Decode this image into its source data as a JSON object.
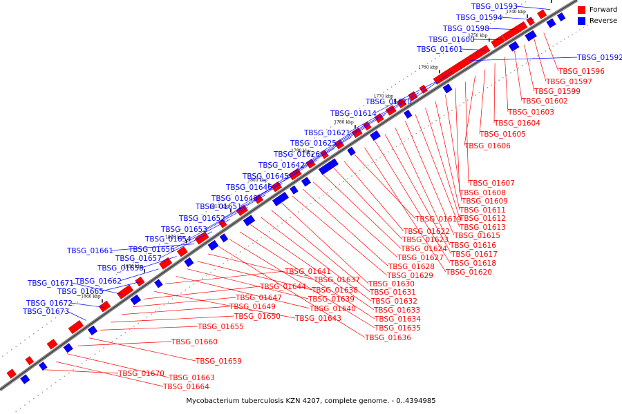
{
  "legend": {
    "forward_label": "Forward",
    "forward_color": "#ff0000",
    "reverse_label": "Reverse",
    "reverse_color": "#0000ff"
  },
  "caption": "Mycobacterium tuberculosis KZN 4207, complete genome. - 0..4394985",
  "axis_ticks": [
    "1730 kbp",
    "1740 kbp",
    "1750 kbp",
    "1760 kbp",
    "1770 kbp",
    "1780 kbp",
    "1790 kbp",
    "1800 kbp",
    "1810 kbp",
    "1820 kbp",
    "1830 kbp",
    "1840 kbp"
  ],
  "reverse_genes": [
    "TBSG_01593",
    "TBSG_01594",
    "TBSG_01598",
    "TBSG_01600",
    "TBSG_01601",
    "TBSG_01592",
    "TBSG_01610",
    "TBSG_01614",
    "TBSG_01621",
    "TBSG_01625",
    "TBSG_01626",
    "TBSG_01642",
    "TBSG_01645",
    "TBSG_01646",
    "TBSG_01648",
    "TBSG_01651",
    "TBSG_01652",
    "TBSG_01653",
    "TBSG_01654",
    "TBSG_01656",
    "TBSG_01657",
    "TBSG_01661",
    "TBSG_01658",
    "TBSG_01662",
    "TBSG_01665",
    "TBSG_01671",
    "TBSG_01672",
    "TBSG_01673"
  ],
  "forward_genes": [
    "TBSG_01596",
    "TBSG_01597",
    "TBSG_01599",
    "TBSG_01602",
    "TBSG_01603",
    "TBSG_01604",
    "TBSG_01605",
    "TBSG_01606",
    "TBSG_01607",
    "TBSG_01608",
    "TBSG_01609",
    "TBSG_01611",
    "TBSG_01612",
    "TBSG_01613",
    "TBSG_01615",
    "TBSG_01616",
    "TBSG_01617",
    "TBSG_01618",
    "TBSG_01620",
    "TBSG_01619",
    "TBSG_01622",
    "TBSG_01623",
    "TBSG_01624",
    "TBSG_01627",
    "TBSG_01628",
    "TBSG_01629",
    "TBSG_01630",
    "TBSG_01631",
    "TBSG_01632",
    "TBSG_01633",
    "TBSG_01634",
    "TBSG_01635",
    "TBSG_01636",
    "TBSG_01637",
    "TBSG_01638",
    "TBSG_01639",
    "TBSG_01640",
    "TBSG_01641",
    "TBSG_01643",
    "TBSG_01644",
    "TBSG_01647",
    "TBSG_01649",
    "TBSG_01650",
    "TBSG_01655",
    "TBSG_01659",
    "TBSG_01660",
    "TBSG_01663",
    "TBSG_01664",
    "TBSG_01670"
  ]
}
